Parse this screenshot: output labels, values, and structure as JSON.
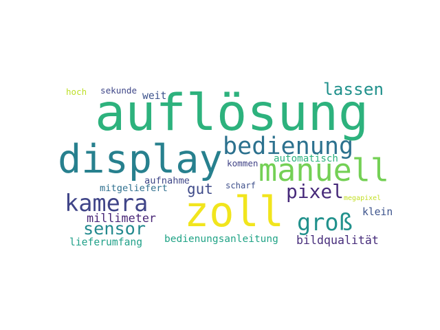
{
  "words": [
    {
      "text": "auflösung",
      "color": "#2db27d"
    },
    {
      "text": "display",
      "color": "#27808e"
    },
    {
      "text": "zoll",
      "color": "#f1e51d"
    },
    {
      "text": "manuell",
      "color": "#74d055"
    },
    {
      "text": "bedienung",
      "color": "#2c718e"
    },
    {
      "text": "kamera",
      "color": "#404588"
    },
    {
      "text": "pixel",
      "color": "#472a7a"
    },
    {
      "text": "groß",
      "color": "#21918c"
    },
    {
      "text": "lassen",
      "color": "#21918c"
    },
    {
      "text": "sensor",
      "color": "#23898e"
    },
    {
      "text": "gut",
      "color": "#3e4a89"
    },
    {
      "text": "millimeter",
      "color": "#482576"
    },
    {
      "text": "automatisch",
      "color": "#2db27d"
    },
    {
      "text": "aufnahme",
      "color": "#3f4788"
    },
    {
      "text": "mitgeliefert",
      "color": "#2e6f8e"
    },
    {
      "text": "bedienungsanleitung",
      "color": "#20a386"
    },
    {
      "text": "lieferumfang",
      "color": "#1fa088"
    },
    {
      "text": "bildqualität",
      "color": "#472d7b"
    },
    {
      "text": "klein",
      "color": "#3b528b"
    },
    {
      "text": "weit",
      "color": "#3b528b"
    },
    {
      "text": "sekunde",
      "color": "#3f4788"
    },
    {
      "text": "kommen",
      "color": "#414487"
    },
    {
      "text": "scharf",
      "color": "#3d4e8a"
    },
    {
      "text": "megapixel",
      "color": "#c2df23"
    },
    {
      "text": "hoch",
      "color": "#bddf26"
    }
  ]
}
